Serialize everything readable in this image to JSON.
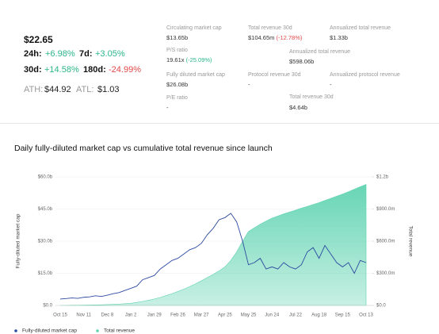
{
  "stats": {
    "price": "$22.65",
    "changes": [
      {
        "label": "24h:",
        "value": "+6.98%"
      },
      {
        "label": "7d:",
        "value": "+3.05%"
      },
      {
        "label": "30d:",
        "value": "+14.58%"
      },
      {
        "label": "180d:",
        "value": "-24.99%"
      }
    ],
    "ath_label": "ATH:",
    "ath": "$44.92",
    "atl_label": "ATL:",
    "atl": "$1.03",
    "metrics": [
      {
        "label": "Circulating market cap",
        "value": "$13.65b"
      },
      {
        "label": "Total revenue 30d",
        "value": "$104.65m",
        "change": "(-12.78%)"
      },
      {
        "label": "Annualized total revenue",
        "value": "$1.33b"
      },
      {
        "label": "P/S ratio",
        "value": "19.61x",
        "change": "(-25.09%)"
      },
      {
        "label": "Annualized total revenue",
        "value": "$598.06b"
      },
      {
        "label": "Fully diluted market cap",
        "value": "$26.08b"
      },
      {
        "label": "Protocol revenue 30d",
        "value": "-"
      },
      {
        "label": "Annualized protocol revenue",
        "value": "-"
      },
      {
        "label": "P/E ratio",
        "value": "-"
      },
      {
        "label": "Total revenue 30d",
        "value": "$4.64b"
      }
    ]
  },
  "chart_data": {
    "type": "line",
    "title": "Daily fully-diluted market cap vs cumulative total revenue since launch",
    "y_label": "Fully-diluted market cap",
    "y2_label": "Total revenue",
    "categories": [
      "Oct 15",
      null,
      null,
      null,
      "Nov 11",
      null,
      null,
      null,
      "Dec 8",
      null,
      null,
      null,
      "Jan 2",
      null,
      null,
      null,
      "Jan 29",
      null,
      null,
      null,
      "Feb 26",
      null,
      null,
      null,
      "Mar 27",
      null,
      null,
      null,
      "Apr 25",
      null,
      null,
      null,
      "May 25",
      null,
      null,
      null,
      "Jun 24",
      null,
      null,
      null,
      "Jul 22",
      null,
      null,
      null,
      "Aug 18",
      null,
      null,
      null,
      "Sep 15",
      null,
      null,
      null,
      "Oct 13"
    ],
    "ylim": [
      0,
      60
    ],
    "yticks": [
      {
        "value": 0,
        "label": "$0.0"
      },
      {
        "value": 15,
        "label": "$15.0b"
      },
      {
        "value": 30,
        "label": "$30.0b"
      },
      {
        "value": 45,
        "label": "$45.0b"
      },
      {
        "value": 60,
        "label": "$60.0b"
      }
    ],
    "y2lim": [
      0,
      1200
    ],
    "y2ticks": [
      {
        "value": 0,
        "label": "$0.0"
      },
      {
        "value": 300,
        "label": "$300.0m"
      },
      {
        "value": 600,
        "label": "$600.0m"
      },
      {
        "value": 900,
        "label": "$900.0m"
      },
      {
        "value": 1200,
        "label": "$1.2b"
      }
    ],
    "grid": true,
    "series": [
      {
        "name": "Fully-diluted market cap",
        "color": "#2c4aa0",
        "kind": "line",
        "values": [
          3,
          3.2,
          3.5,
          3.3,
          3.8,
          4,
          4.5,
          4.2,
          4.8,
          5.5,
          6,
          7,
          8,
          9,
          12,
          13,
          14,
          17,
          19,
          21,
          22,
          24,
          26,
          27,
          29,
          33,
          36,
          40,
          41,
          43,
          39,
          30,
          19,
          20,
          22,
          17,
          18,
          17,
          20,
          18,
          17,
          19,
          25,
          27,
          22,
          28,
          24,
          20,
          18,
          20,
          15,
          21,
          20
        ]
      },
      {
        "name": "Total revenue",
        "color": "#5fd3b0",
        "kind": "area",
        "axis": "y2",
        "values": [
          0,
          1,
          2,
          2,
          3,
          4,
          5,
          6,
          8,
          10,
          13,
          16,
          20,
          28,
          38,
          48,
          60,
          75,
          92,
          110,
          130,
          152,
          176,
          202,
          230,
          260,
          290,
          322,
          360,
          420,
          500,
          600,
          690,
          725,
          758,
          788,
          815,
          835,
          855,
          872,
          890,
          908,
          925,
          942,
          960,
          980,
          1000,
          1020,
          1040,
          1062,
          1085,
          1108,
          1130
        ]
      }
    ]
  }
}
